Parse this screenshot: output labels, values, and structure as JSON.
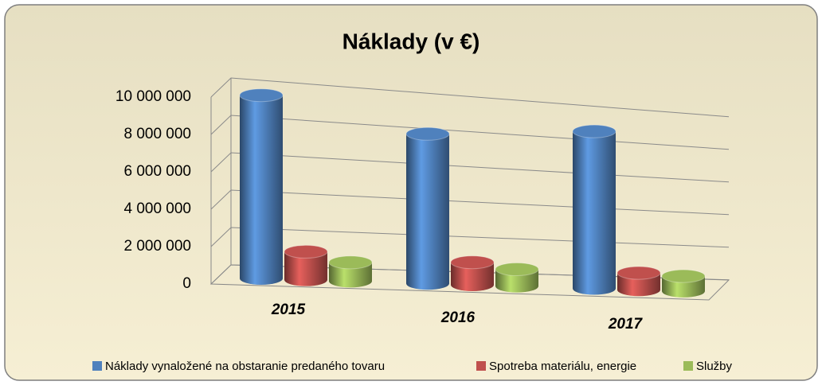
{
  "chart_data": {
    "type": "bar3d",
    "title": "Náklady (v €)",
    "categories": [
      "2015",
      "2016",
      "2017"
    ],
    "series": [
      {
        "name": "Náklady vynaložené na obstaranie predaného tovaru",
        "color": "#4f81bd",
        "values": [
          9800000,
          8000000,
          8400000
        ]
      },
      {
        "name": "Spotreba materiálu, energie",
        "color": "#c0504d",
        "values": [
          1500000,
          1200000,
          900000
        ]
      },
      {
        "name": "Služby",
        "color": "#9bbb59",
        "values": [
          1000000,
          900000,
          800000
        ]
      }
    ],
    "ylim": [
      0,
      10000000
    ],
    "yticks": [
      0,
      {
        "value": 2000000,
        "label": "2 000 000"
      },
      {
        "value": 4000000,
        "label": "4 000 000"
      },
      {
        "value": 6000000,
        "label": "6 000 000"
      },
      {
        "value": 8000000,
        "label": "8 000 000"
      },
      {
        "value": 10000000,
        "label": "10 000 000"
      }
    ],
    "grid": true,
    "legend": "bottom"
  }
}
